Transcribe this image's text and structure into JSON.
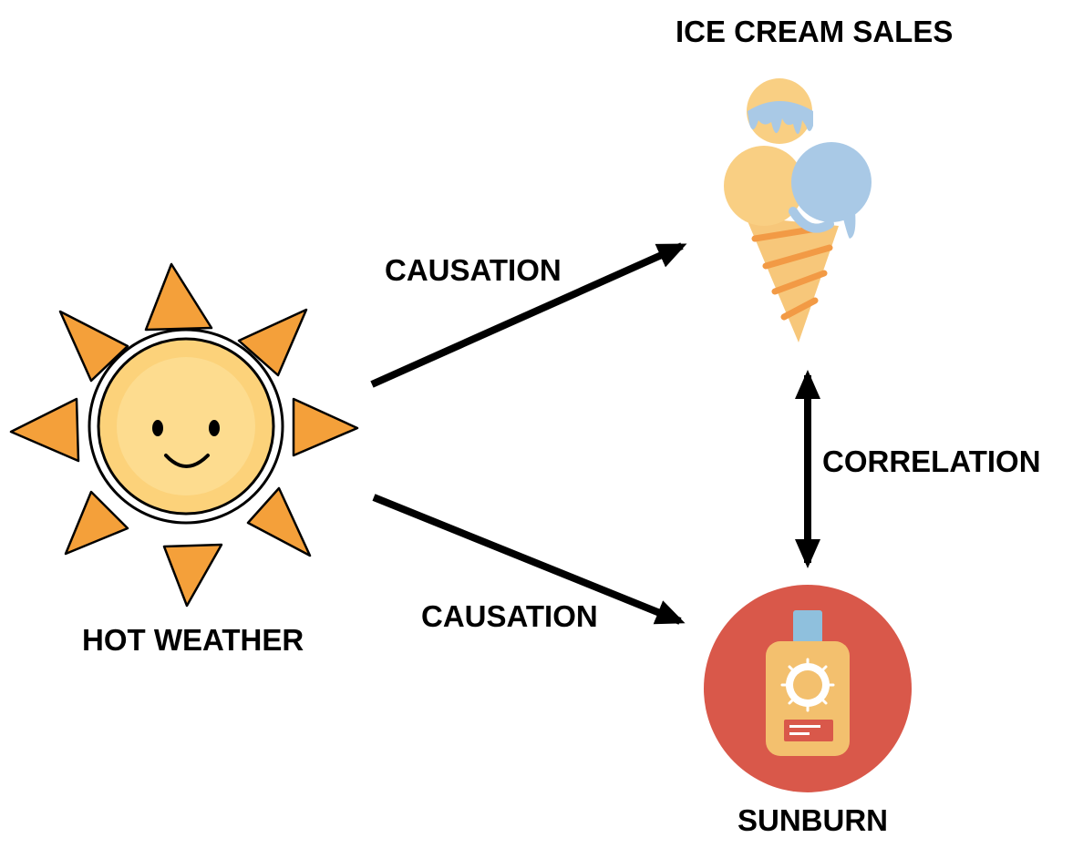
{
  "nodes": {
    "hot_weather": {
      "label": "HOT WEATHER",
      "icon": "sun-icon"
    },
    "ice_cream": {
      "label": "ICE CREAM SALES",
      "icon": "ice-cream-cone-icon"
    },
    "sunburn": {
      "label": "SUNBURN",
      "icon": "sunscreen-bottle-icon"
    }
  },
  "edges": {
    "to_ice_cream": {
      "label": "CAUSATION",
      "from": "HOT WEATHER",
      "to": "ICE CREAM SALES",
      "direction": "one-way"
    },
    "to_sunburn": {
      "label": "CAUSATION",
      "from": "HOT WEATHER",
      "to": "SUNBURN",
      "direction": "one-way"
    },
    "correlation": {
      "label": "CORRELATION",
      "from": "ICE CREAM SALES",
      "to": "SUNBURN",
      "direction": "two-way"
    }
  },
  "colors": {
    "sun_ray": "#f4a03a",
    "sun_face": "#fcd27a",
    "scoop_orange": "#f9cf83",
    "scoop_blue": "#a9c9e6",
    "cone": "#f7c77a",
    "cone_stripe": "#f29a45",
    "sunburn_circle": "#d9584a",
    "bottle": "#f3c06e",
    "bottle_cap": "#8fc0dd",
    "arrow": "#000000"
  }
}
